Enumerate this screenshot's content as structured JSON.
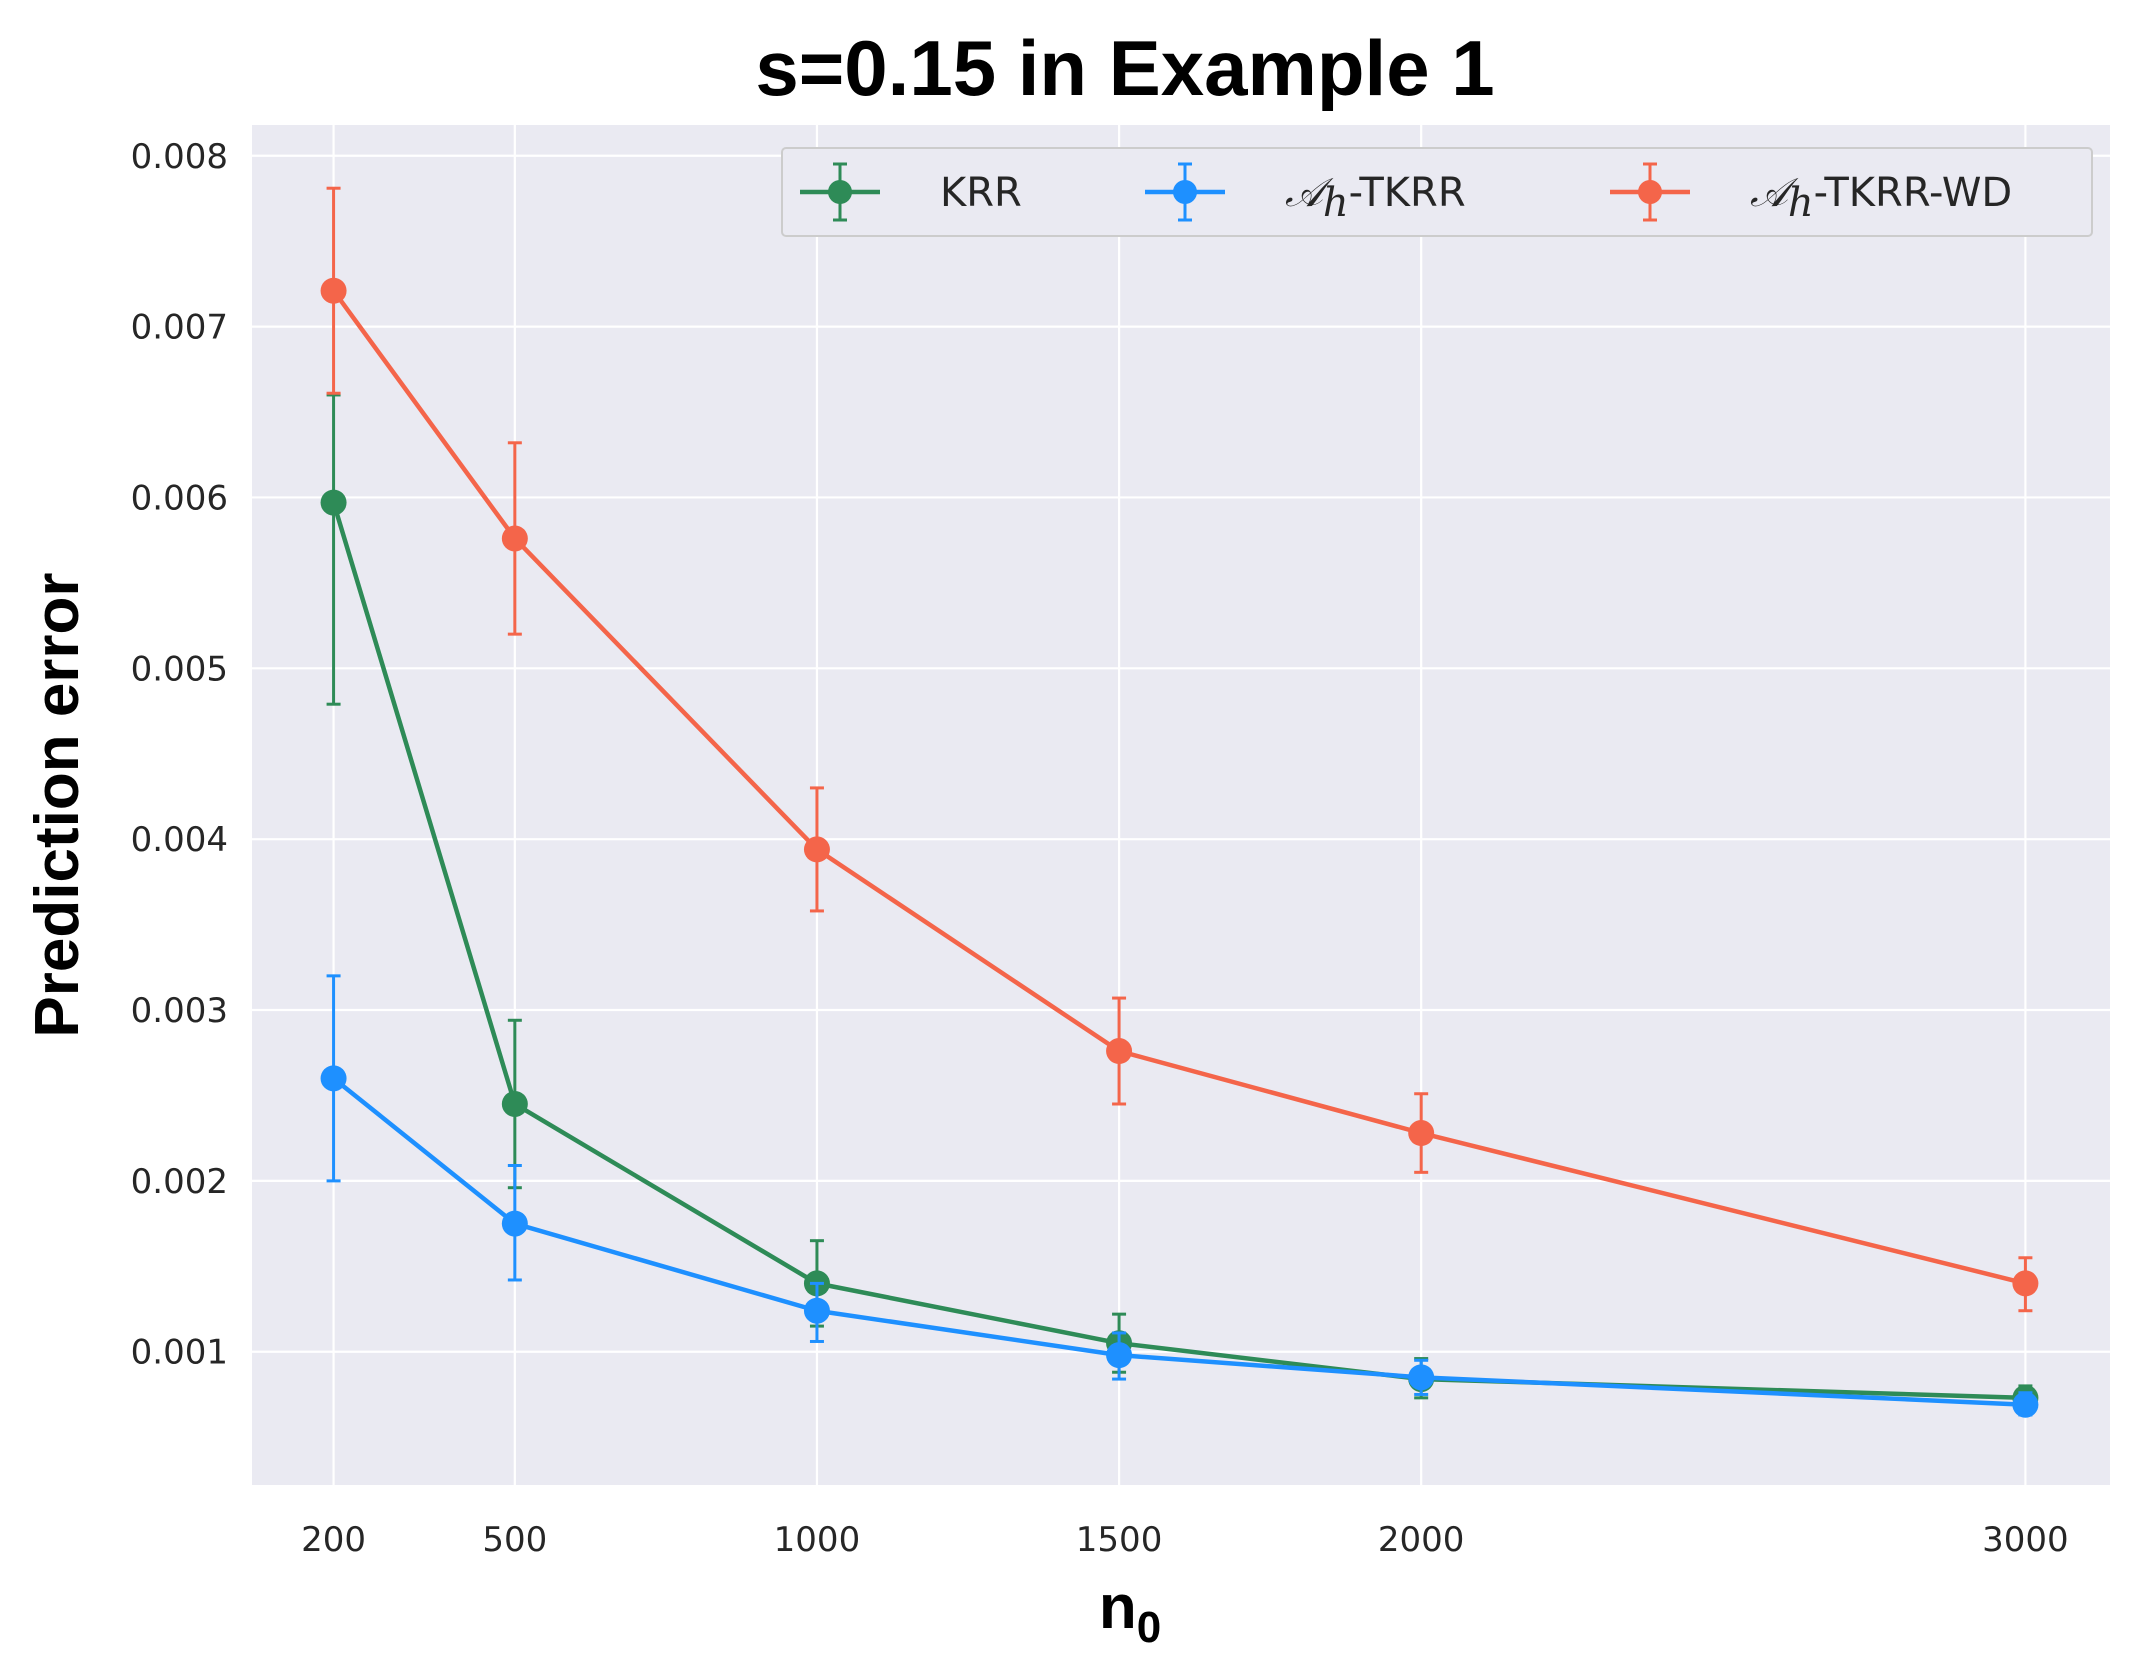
{
  "chart_data": {
    "type": "line",
    "title": "s=0.15 in Example 1",
    "xlabel": "n",
    "xlabel_subscript": "0",
    "ylabel": "Prediction error",
    "x": [
      200,
      500,
      1000,
      1500,
      2000,
      3000
    ],
    "x_tick_labels": [
      "200",
      "500",
      "1000",
      "1500",
      "2000",
      "3000"
    ],
    "xlim": [
      65,
      3140
    ],
    "ylim": [
      0.00022,
      0.00818
    ],
    "y_ticks": [
      0.001,
      0.002,
      0.003,
      0.004,
      0.005,
      0.006,
      0.007,
      0.008
    ],
    "y_tick_labels": [
      "0.001",
      "0.002",
      "0.003",
      "0.004",
      "0.005",
      "0.006",
      "0.007",
      "0.008"
    ],
    "grid": true,
    "legend_placement": "top-right",
    "background": "#eaeaf2",
    "series": [
      {
        "name": "KRR",
        "legend_prefix": "",
        "legend_suffix": "KRR",
        "color": "#2e8b57",
        "values": [
          0.00597,
          0.00245,
          0.0014,
          0.00105,
          0.00084,
          0.00073
        ],
        "err_low": [
          0.00479,
          0.00196,
          0.00115,
          0.00088,
          0.00073,
          0.00066
        ],
        "err_high": [
          0.0066,
          0.00294,
          0.00165,
          0.00122,
          0.00096,
          0.0008
        ]
      },
      {
        "name": "𝒜h-TKRR",
        "legend_prefix": "𝒜",
        "legend_sub": "h",
        "legend_suffix": "-TKRR",
        "color": "#1e90ff",
        "values": [
          0.0026,
          0.00175,
          0.00124,
          0.00098,
          0.00085,
          0.00069
        ],
        "err_low": [
          0.002,
          0.00142,
          0.00106,
          0.00084,
          0.00075,
          0.00063
        ],
        "err_high": [
          0.0032,
          0.00209,
          0.0014,
          0.00111,
          0.00095,
          0.00076
        ]
      },
      {
        "name": "𝒜h-TKRR-WD",
        "legend_prefix": "𝒜",
        "legend_sub": "h",
        "legend_suffix": "-TKRR-WD",
        "color": "#f4654a",
        "values": [
          0.00721,
          0.00576,
          0.00394,
          0.00276,
          0.00228,
          0.0014
        ],
        "err_low": [
          0.00661,
          0.0052,
          0.00358,
          0.00245,
          0.00205,
          0.00124
        ],
        "err_high": [
          0.00781,
          0.00632,
          0.0043,
          0.00307,
          0.00251,
          0.00155
        ]
      }
    ]
  }
}
